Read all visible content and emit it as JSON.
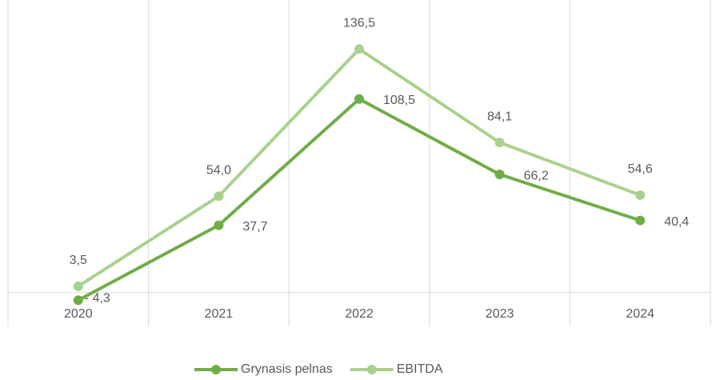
{
  "chart_data": {
    "type": "line",
    "categories": [
      "2020",
      "2021",
      "2022",
      "2023",
      "2024"
    ],
    "series": [
      {
        "name": "Grynasis pelnas",
        "color": "#70ad47",
        "values": [
          -4.3,
          37.7,
          108.5,
          66.2,
          40.4
        ],
        "value_labels": [
          "- 4,3",
          "37,7",
          "108,5",
          "66,2",
          "40,4"
        ]
      },
      {
        "name": "EBITDA",
        "color": "#a9d18e",
        "values": [
          3.5,
          54.0,
          136.5,
          84.1,
          54.6
        ],
        "value_labels": [
          "3,5",
          "54,0",
          "136,5",
          "84,1",
          "54,6"
        ]
      }
    ],
    "ylim": [
      -19,
      164
    ],
    "legend": "bottom"
  }
}
